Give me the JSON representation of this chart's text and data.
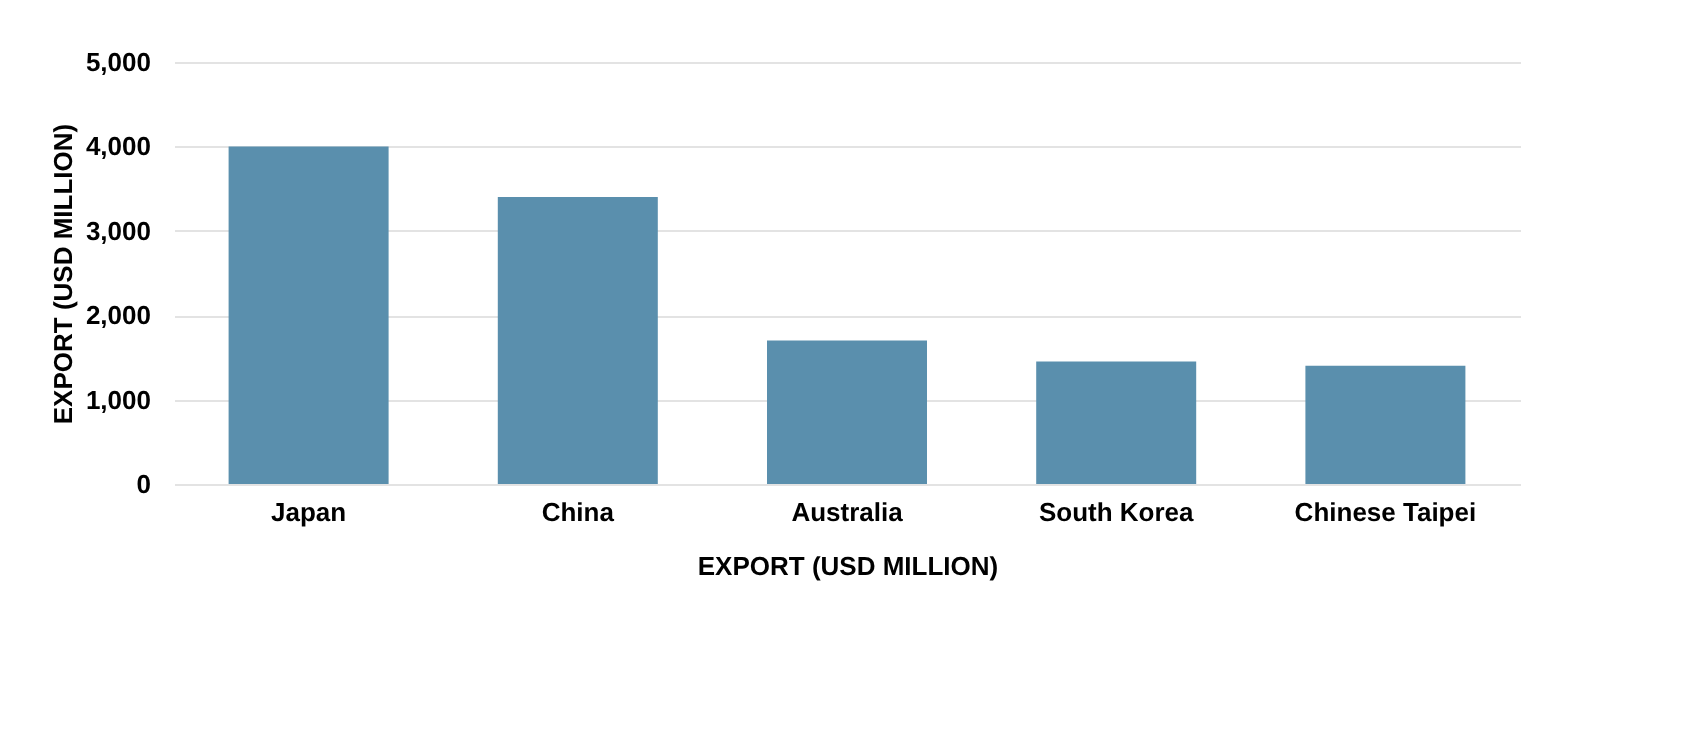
{
  "chart_data": {
    "type": "bar",
    "categories": [
      "Japan",
      "China",
      "Australia",
      "South Korea",
      "Chinese Taipei"
    ],
    "values": [
      4000,
      3400,
      1700,
      1450,
      1400
    ],
    "color": "#5a8fad",
    "xlabel": "EXPORT (USD MILLION)",
    "ylabel": "EXPORT (USD MILLION)",
    "ylim": [
      0,
      5000
    ],
    "yticks": [
      0,
      {
        "value": 1000,
        "label": "1,000"
      },
      {
        "value": 2000,
        "label": "2,000"
      },
      {
        "value": 3000,
        "label": "3,000"
      },
      {
        "value": 4000,
        "label": "4,000"
      },
      {
        "value": 5000,
        "label": "5,000"
      }
    ],
    "grid": "y"
  }
}
